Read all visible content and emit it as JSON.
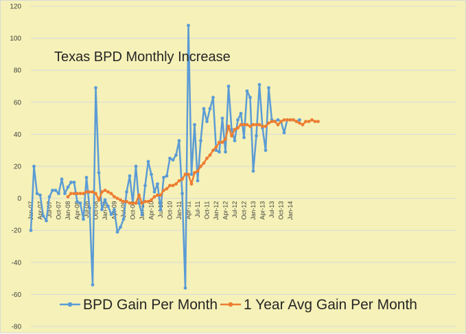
{
  "chart_data": {
    "type": "line",
    "title": "Texas BPD Monthly Increase",
    "xlabel": "",
    "ylabel": "",
    "ylim": [
      -80,
      120
    ],
    "y_ticks": [
      "120",
      "100",
      "80",
      "60",
      "40",
      "20",
      "0",
      "-20",
      "-40",
      "-60",
      "-80"
    ],
    "grid": "horizontal",
    "legend_position": "bottom",
    "x_tick_labels": [
      "Jan-07",
      "Apr-07",
      "Jul-07",
      "Oct-07",
      "Jan-08",
      "Apr-08",
      "Jul-08",
      "Oct-08",
      "Jan-09",
      "Apr-09",
      "Jul-09",
      "Oct-09",
      "Jan-10",
      "Apr-10",
      "Jul-10",
      "Oct-10",
      "Jan-11",
      "Apr-11",
      "Jul-11",
      "Oct-11",
      "Jan-12",
      "Apr-12",
      "Jul-12",
      "Oct-12",
      "Jan-13",
      "Apr-13",
      "Jul-13",
      "Oct-13",
      "Jan-14"
    ],
    "x_months_start": "Jan-07",
    "series": [
      {
        "name": "BPD Gain Per Month",
        "color": "#5b9bd5",
        "values": [
          -20,
          20,
          3,
          2,
          -11,
          -14,
          1,
          5,
          5,
          3,
          12,
          3,
          7,
          10,
          10,
          -2,
          -3,
          -13,
          13,
          -6,
          -54,
          69,
          16,
          -7,
          -1,
          -5,
          -10,
          -7,
          -21,
          -18,
          -13,
          4,
          14,
          -3,
          20,
          -3,
          -10,
          8,
          23,
          15,
          4,
          9,
          -7,
          13,
          14,
          25,
          24,
          27,
          36,
          3,
          -56,
          108,
          15,
          46,
          11,
          36,
          56,
          48,
          56,
          63,
          30,
          29,
          50,
          29,
          70,
          43,
          36,
          49,
          53,
          38,
          67,
          63,
          17,
          39,
          71,
          44,
          30,
          69,
          49,
          48,
          49,
          48,
          41,
          49,
          49,
          49,
          48,
          49
        ]
      },
      {
        "name": "1 Year Avg Gain Per Month",
        "color": "#ed7d31",
        "start_index": 12,
        "values": [
          1,
          3,
          3,
          3,
          3,
          3,
          4,
          4,
          4,
          3,
          -1,
          4,
          5,
          4,
          3,
          1,
          0,
          -1,
          -2,
          -2,
          -3,
          -3,
          -3,
          2,
          -3,
          -2,
          -2,
          -1,
          1,
          2,
          2,
          5,
          6,
          8,
          8,
          9,
          11,
          12,
          15,
          15,
          9,
          16,
          17,
          20,
          22,
          25,
          27,
          30,
          32,
          35,
          35,
          37,
          45,
          39,
          43,
          44,
          46,
          46,
          46,
          45,
          46,
          46,
          46,
          45,
          45,
          47,
          48,
          48,
          46,
          48,
          49,
          49,
          49,
          49,
          48,
          47,
          46,
          48,
          48,
          49,
          48,
          48
        ]
      }
    ]
  }
}
